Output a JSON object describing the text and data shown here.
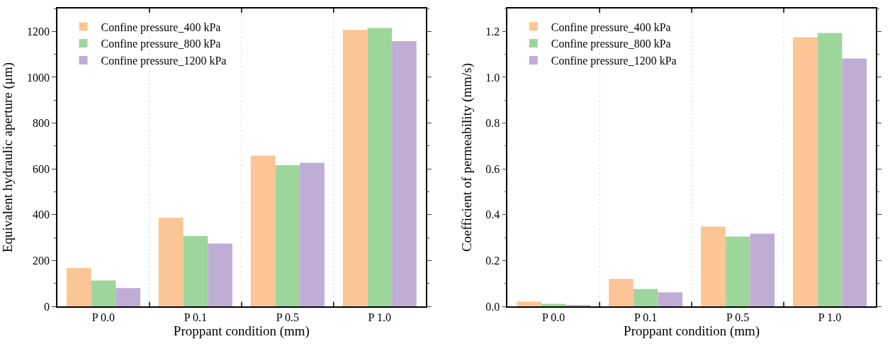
{
  "chart_data": [
    {
      "type": "bar",
      "xlabel": "Proppant condition (mm)",
      "ylabel": "Equivalent hydraulic aperture (μm)",
      "categories": [
        "P 0.0",
        "P 0.1",
        "P 0.5",
        "P 1.0"
      ],
      "series": [
        {
          "name": "Confine pressure_400 kPa",
          "color": "#fcc596",
          "values": [
            167,
            387,
            658,
            1206
          ]
        },
        {
          "name": "Confine pressure_800 kPa",
          "color": "#9dd69b",
          "values": [
            113,
            307,
            616,
            1215
          ]
        },
        {
          "name": "Confine pressure_1200 kPa",
          "color": "#bfadd6",
          "values": [
            80,
            274,
            627,
            1158
          ]
        }
      ],
      "ylim": [
        0,
        1300
      ],
      "yticks": [
        0,
        200,
        400,
        600,
        800,
        1000,
        1200
      ],
      "legend": "top left"
    },
    {
      "type": "bar",
      "xlabel": "Proppant condition (mm)",
      "ylabel": "Coefficient of permeability (mm/s)",
      "categories": [
        "P 0.0",
        "P 0.1",
        "P 0.5",
        "P 1.0"
      ],
      "series": [
        {
          "name": "Confine pressure_400 kPa",
          "color": "#fcc596",
          "values": [
            0.021,
            0.12,
            0.348,
            1.175
          ]
        },
        {
          "name": "Confine pressure_800 kPa",
          "color": "#9dd69b",
          "values": [
            0.011,
            0.076,
            0.305,
            1.193
          ]
        },
        {
          "name": "Confine pressure_1200 kPa",
          "color": "#bfadd6",
          "values": [
            0.006,
            0.061,
            0.317,
            1.082
          ]
        }
      ],
      "ylim": [
        0,
        1.3
      ],
      "yticks": [
        {
          "value": 0,
          "label": "0.0"
        },
        0.2,
        0.4,
        0.6,
        0.8,
        {
          "value": 1,
          "label": "1.0"
        },
        1.2
      ],
      "legend": "top left"
    }
  ]
}
